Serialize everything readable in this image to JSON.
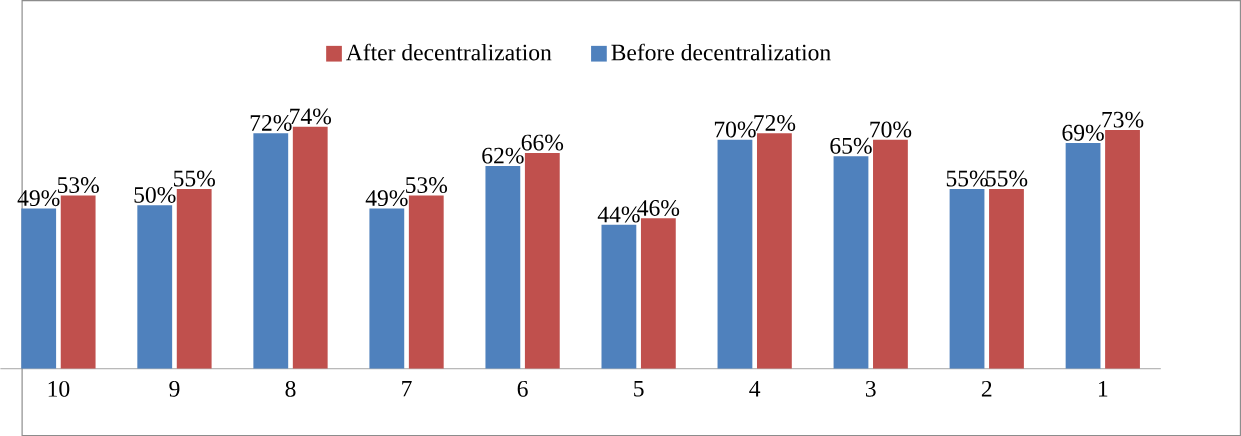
{
  "chart_data": {
    "type": "bar",
    "categories": [
      "10",
      "9",
      "8",
      "7",
      "6",
      "5",
      "4",
      "3",
      "2",
      "1"
    ],
    "series": [
      {
        "name": "Before decentralization",
        "color": "#4f81bd",
        "values": [
          49,
          50,
          72,
          49,
          62,
          44,
          70,
          65,
          55,
          69
        ],
        "value_labels": [
          "49%",
          "50%",
          "72%",
          "49%",
          "62%",
          "44%",
          "70%",
          "65%",
          "55%",
          "69%"
        ]
      },
      {
        "name": "After decentralization",
        "color": "#c0504d",
        "values": [
          53,
          55,
          74,
          53,
          66,
          46,
          72,
          70,
          55,
          73
        ],
        "value_labels": [
          "53%",
          "55%",
          "74%",
          "53%",
          "66%",
          "46%",
          "72%",
          "70%",
          "55%",
          "73%"
        ]
      }
    ],
    "legend": "top"
  }
}
